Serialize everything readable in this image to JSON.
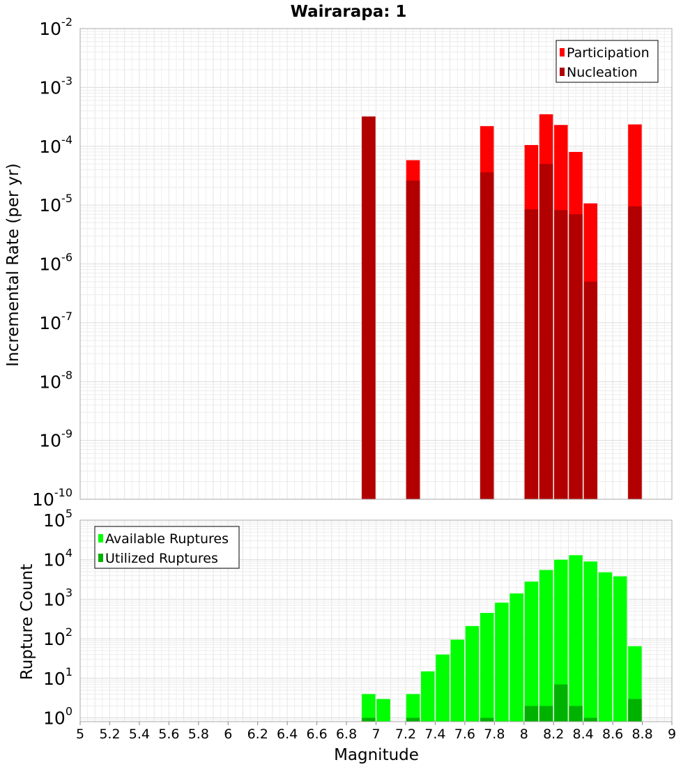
{
  "chart_data": [
    {
      "type": "bar",
      "title": "Wairarapa: 1",
      "xlabel": "",
      "ylabel": "Incremental Rate (per yr)",
      "yscale": "log",
      "xlim": [
        5,
        9
      ],
      "ylim": [
        1e-10,
        0.01
      ],
      "y_tick_labels": [
        {
          "base": "10",
          "exp": "-10"
        },
        {
          "base": "10",
          "exp": "-9"
        },
        {
          "base": "10",
          "exp": "-8"
        },
        {
          "base": "10",
          "exp": "-7"
        },
        {
          "base": "10",
          "exp": "-6"
        },
        {
          "base": "10",
          "exp": "-5"
        },
        {
          "base": "10",
          "exp": "-4"
        },
        {
          "base": "10",
          "exp": "-3"
        },
        {
          "base": "10",
          "exp": "-2"
        }
      ],
      "grid": true,
      "legend_position": "top-right",
      "colors": {
        "Participation": "#ff0000",
        "Nucleation": "#b20000"
      },
      "x": [
        6.95,
        7.25,
        7.75,
        8.05,
        8.15,
        8.25,
        8.35,
        8.45,
        8.75
      ],
      "series": [
        {
          "name": "Participation",
          "values": [
            0.00032,
            5.8e-05,
            0.00022,
            0.000105,
            0.00035,
            0.00023,
            8e-05,
            1.07e-05,
            0.000235
          ]
        },
        {
          "name": "Nucleation",
          "values": [
            0.00032,
            2.6e-05,
            3.6e-05,
            8.5e-06,
            5e-05,
            8.2e-06,
            7e-06,
            5e-07,
            9.5e-06
          ]
        }
      ]
    },
    {
      "type": "bar",
      "title": "",
      "xlabel": "Magnitude",
      "ylabel": "Rupture Count",
      "yscale": "log",
      "xlim": [
        5,
        9
      ],
      "ylim": [
        0.8,
        100000.0
      ],
      "y_tick_labels": [
        {
          "base": "10",
          "exp": "0"
        },
        {
          "base": "10",
          "exp": "1"
        },
        {
          "base": "10",
          "exp": "2"
        },
        {
          "base": "10",
          "exp": "3"
        },
        {
          "base": "10",
          "exp": "4"
        },
        {
          "base": "10",
          "exp": "5"
        }
      ],
      "x_ticks": [
        "5",
        "5.2",
        "5.4",
        "5.6",
        "5.8",
        "6",
        "6.2",
        "6.4",
        "6.6",
        "6.8",
        "7",
        "7.2",
        "7.4",
        "7.6",
        "7.8",
        "8",
        "8.2",
        "8.4",
        "8.6",
        "8.8",
        "9"
      ],
      "grid": true,
      "legend_position": "top-left",
      "colors": {
        "Available Ruptures": "#00ff00",
        "Utilized Ruptures": "#00b200"
      },
      "x": [
        6.95,
        7.05,
        7.25,
        7.35,
        7.45,
        7.55,
        7.65,
        7.75,
        7.85,
        7.95,
        8.05,
        8.15,
        8.25,
        8.35,
        8.45,
        8.55,
        8.65,
        8.75
      ],
      "series": [
        {
          "name": "Available Ruptures",
          "values": [
            4,
            3,
            4,
            15,
            40,
            95,
            210,
            450,
            820,
            1400,
            2800,
            5500,
            10000,
            13000,
            9000,
            4800,
            3800,
            65
          ]
        },
        {
          "name": "Utilized Ruptures",
          "values": [
            1,
            null,
            1,
            null,
            null,
            null,
            null,
            1,
            null,
            null,
            2,
            2,
            7,
            2,
            1,
            null,
            null,
            3
          ]
        }
      ]
    }
  ]
}
